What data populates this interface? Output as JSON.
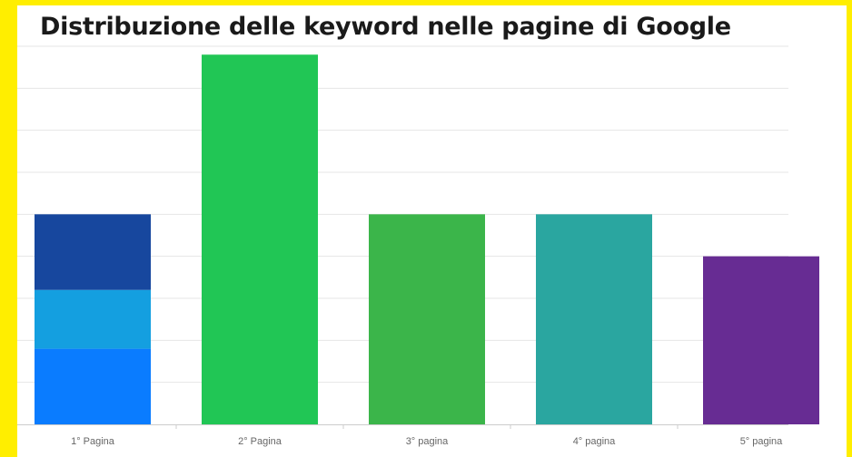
{
  "title": "Distribuzione delle keyword nelle pagine di Google",
  "colors": {
    "background": "#ffee00",
    "gridline": "#e6e6e6",
    "axis": "#cccccc"
  },
  "chart_data": {
    "type": "bar",
    "title": "Distribuzione delle keyword nelle pagine di Google",
    "categories": [
      "1° Pagina",
      "2° Pagina",
      "3° pagina",
      "4° pagina",
      "5° pagina"
    ],
    "stacked": true,
    "xlabel": "",
    "ylabel": "",
    "ylim": [
      0,
      9
    ],
    "grid": true,
    "y_tick_labels_visible": false,
    "series": [
      {
        "values": [
          1.8,
          0,
          0,
          0,
          0
        ],
        "color": "#0a7cff"
      },
      {
        "values": [
          1.4,
          0,
          0,
          0,
          0
        ],
        "color": "#149fe0"
      },
      {
        "values": [
          1.8,
          0,
          0,
          0,
          0
        ],
        "color": "#17479e"
      },
      {
        "values": [
          0,
          8.8,
          0,
          0,
          0
        ],
        "color": "#21c655"
      },
      {
        "values": [
          0,
          0,
          5,
          0,
          0
        ],
        "color": "#3bb54a"
      },
      {
        "values": [
          0,
          0,
          0,
          5,
          0
        ],
        "color": "#2aa6a0"
      },
      {
        "values": [
          0,
          0,
          0,
          0,
          4
        ],
        "color": "#672c93"
      }
    ]
  }
}
